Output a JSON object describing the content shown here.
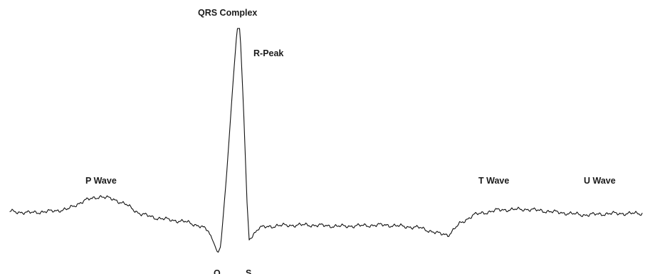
{
  "labels": {
    "qrs_complex": "QRS Complex",
    "r_peak": "R-Peak",
    "p_wave": "P Wave",
    "t_wave": "T Wave",
    "u_wave": "U Wave",
    "q": "Q",
    "s": "S"
  },
  "colors": {
    "trace": "#111111",
    "text": "#1a1a1a",
    "background": "#ffffff"
  }
}
